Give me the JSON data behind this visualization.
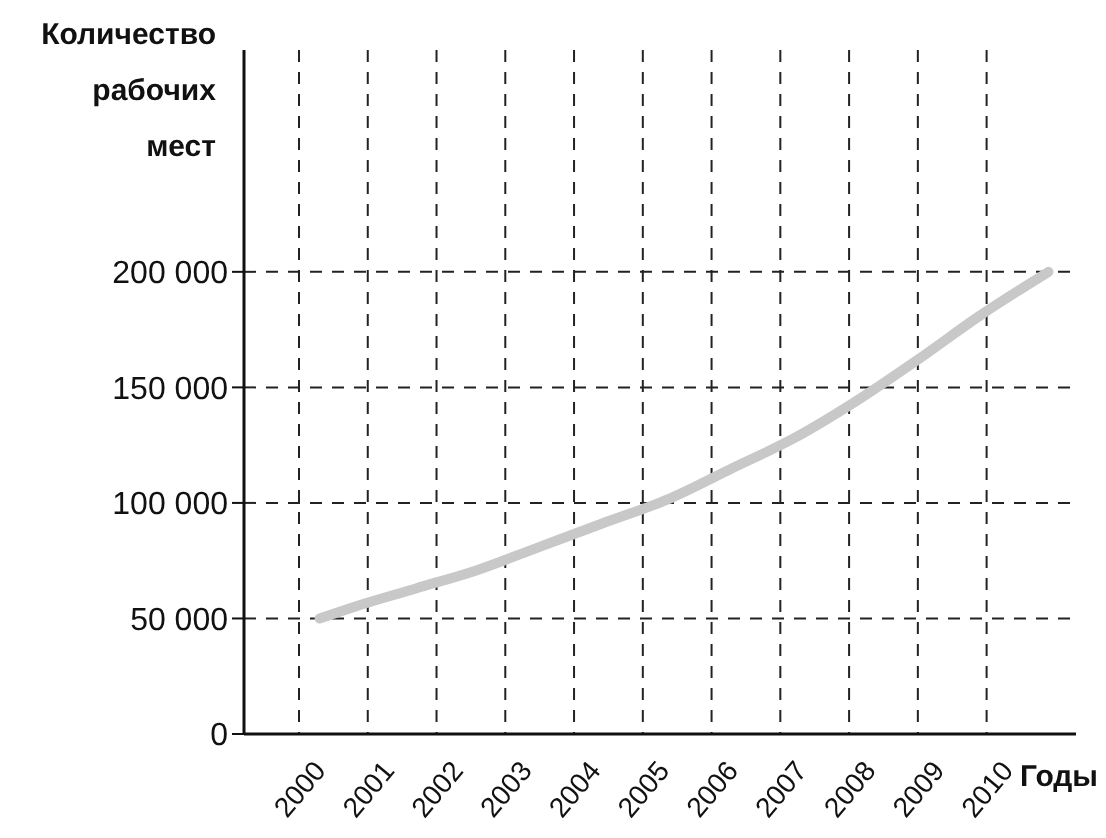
{
  "chart_data": {
    "type": "line",
    "xlabel": "Годы",
    "ylabel": "Количество рабочих мест",
    "x": [
      2000.3,
      2000.8,
      2001.7,
      2002.6,
      2003.5,
      2004.4,
      2005.4,
      2006.3,
      2007.2,
      2008.1,
      2009.0,
      2009.9,
      2010.9
    ],
    "series": [
      {
        "color": "#c8c8c8",
        "values": [
          50000,
          55000,
          63000,
          71000,
          81000,
          91000,
          102000,
          115000,
          128000,
          144000,
          162000,
          181000,
          200000
        ]
      }
    ],
    "xlim": [
      1999.2,
      2011.3
    ],
    "xticks": [
      2000,
      2001,
      2002,
      2003,
      2004,
      2005,
      2006,
      2007,
      2008,
      2009,
      2010
    ],
    "ylim": [
      0,
      296000
    ],
    "yticks": [
      0,
      {
        "value": 50000,
        "label": "50 000"
      },
      {
        "value": 100000,
        "label": "100 000"
      },
      {
        "value": 150000,
        "label": "150 000"
      },
      {
        "value": 200000,
        "label": "200 000"
      }
    ],
    "grid": true,
    "line_style": "solid",
    "marker": "none"
  }
}
